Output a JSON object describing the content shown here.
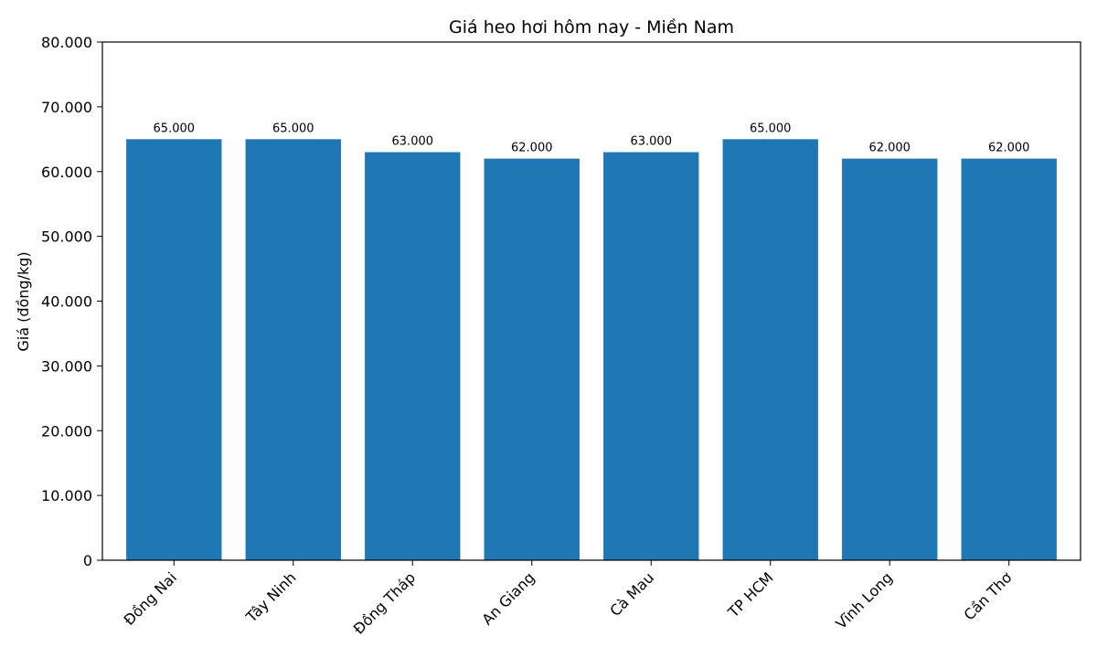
{
  "chart_data": {
    "type": "bar",
    "title": "Giá heo hơi hôm nay - Miền Nam",
    "xlabel": "",
    "ylabel": "Giá (đồng/kg)",
    "categories": [
      "Đồng Nai",
      "Tây Ninh",
      "Đồng Tháp",
      "An Giang",
      "Cà Mau",
      "TP HCM",
      "Vĩnh Long",
      "Cần Thơ"
    ],
    "values": [
      65000,
      65000,
      63000,
      62000,
      63000,
      65000,
      62000,
      62000
    ],
    "value_labels": [
      "65.000",
      "65.000",
      "63.000",
      "62.000",
      "63.000",
      "65.000",
      "62.000",
      "62.000"
    ],
    "ylim": [
      0,
      80000
    ],
    "yticks": [
      0,
      10000,
      20000,
      30000,
      40000,
      50000,
      60000,
      70000,
      80000
    ],
    "ytick_labels": [
      "0",
      "10.000",
      "20.000",
      "30.000",
      "40.000",
      "50.000",
      "60.000",
      "70.000",
      "80.000"
    ],
    "bar_color": "#1f77b4",
    "grid": false,
    "legend": "none"
  }
}
